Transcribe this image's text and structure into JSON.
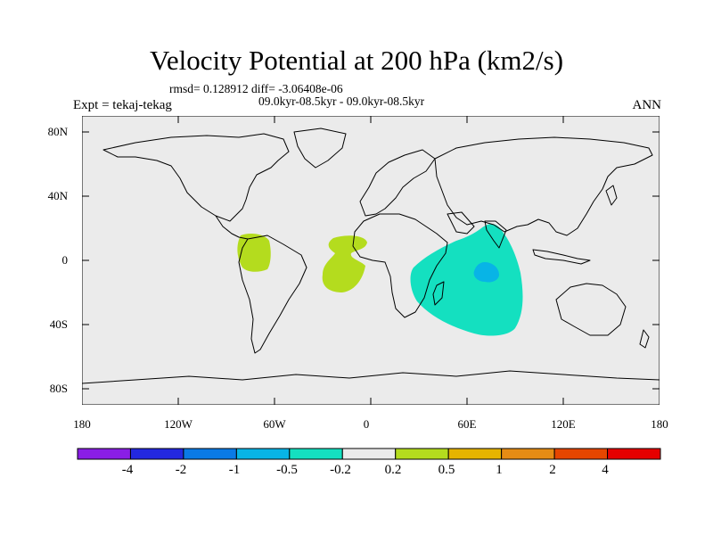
{
  "title": "Velocity Potential at 200 hPa (km2/s)",
  "stats": "rmsd= 0.128912 diff= -3.06408e-06",
  "period": "09.0kyr-08.5kyr - 09.0kyr-08.5kyr",
  "experiment": "Expt = tekaj-tekag",
  "season": "ANN",
  "lat_labels": [
    "80N",
    "40N",
    "0",
    "40S",
    "80S"
  ],
  "lon_labels": [
    "180",
    "120W",
    "60W",
    "0",
    "60E",
    "120E",
    "180"
  ],
  "colorbar": {
    "colors": [
      "#8a1ee6",
      "#2328e0",
      "#0a7ae6",
      "#08b4e6",
      "#14e0c0",
      "#ebebeb",
      "#b4dc1e",
      "#e6b400",
      "#e68c14",
      "#e64600",
      "#e60000"
    ],
    "labels": [
      "-4",
      "-2",
      "-1",
      "-0.5",
      "-0.2",
      "0.2",
      "0.5",
      "1",
      "2",
      "4"
    ]
  },
  "map_colors": {
    "background": "#ebebeb",
    "positive": "#b4dc1e",
    "negative": "#14e0c0",
    "negative_strong": "#08b4e6"
  }
}
